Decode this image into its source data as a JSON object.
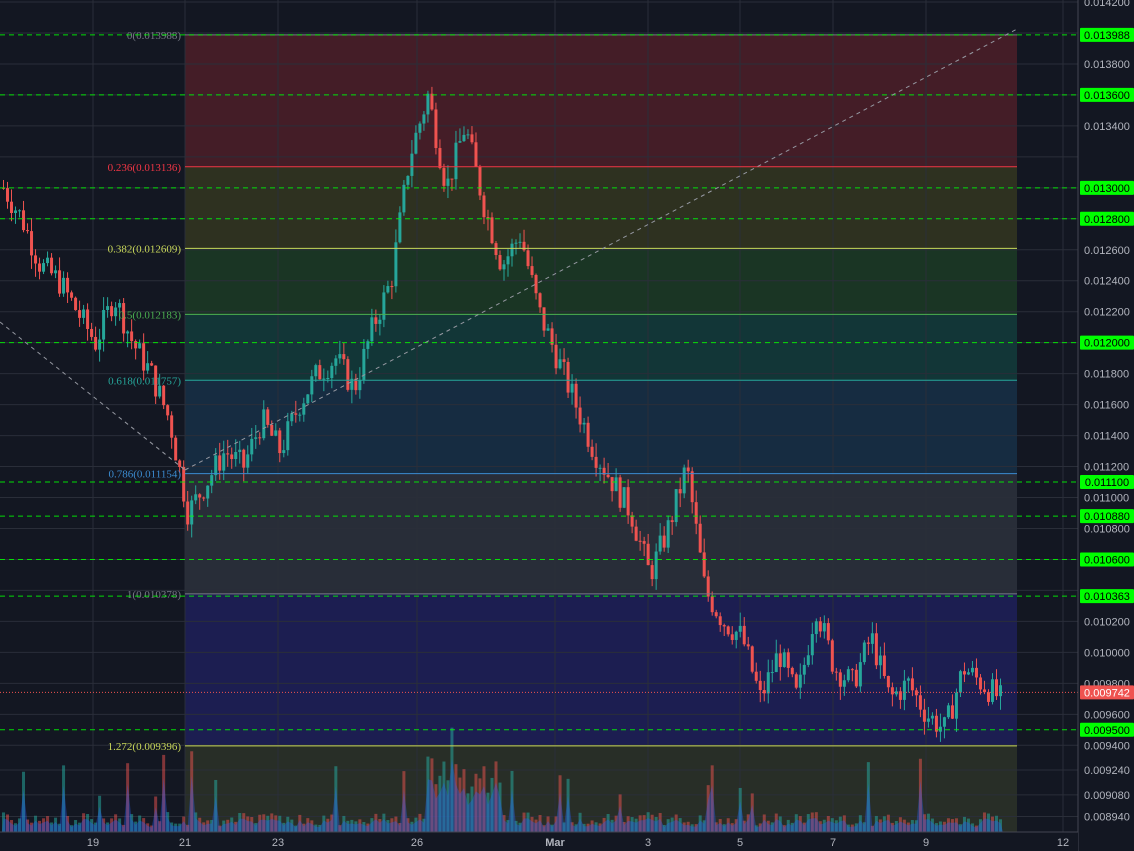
{
  "chart_data": {
    "type": "candlestick",
    "y_axis": {
      "ylim": [
        0.00884,
        0.0142
      ],
      "ticks": [
        "0.014200",
        "0.013800",
        "0.013400",
        "0.012600",
        "0.012400",
        "0.012200",
        "0.011800",
        "0.011600",
        "0.011400",
        "0.011200",
        "0.011000",
        "0.010800",
        "0.010200",
        "0.010000",
        "0.009800",
        "0.009600",
        "0.009400",
        "0.009240",
        "0.009080",
        "0.008940"
      ]
    },
    "x_axis": {
      "ticks": [
        {
          "label": "19",
          "bold": false
        },
        {
          "label": "21",
          "bold": false
        },
        {
          "label": "23",
          "bold": false
        },
        {
          "label": "26",
          "bold": false
        },
        {
          "label": "Mar",
          "bold": true
        },
        {
          "label": "3",
          "bold": false
        },
        {
          "label": "5",
          "bold": false
        },
        {
          "label": "7",
          "bold": false
        },
        {
          "label": "9",
          "bold": false
        },
        {
          "label": "12",
          "bold": false
        }
      ]
    },
    "fib_levels": [
      {
        "ratio": "0",
        "value": 0.013988,
        "label": "0(0.013988)",
        "color": "#787b86"
      },
      {
        "ratio": "0.236",
        "value": 0.013136,
        "label": "0.236(0.013136)",
        "color": "#f23645"
      },
      {
        "ratio": "0.382",
        "value": 0.012609,
        "label": "0.382(0.012609)",
        "color": "#c9d85a"
      },
      {
        "ratio": "0.5",
        "value": 0.012183,
        "label": "0.5(0.012183)",
        "color": "#4caf50"
      },
      {
        "ratio": "0.618",
        "value": 0.011757,
        "label": "0.618(0.011757)",
        "color": "#26a69a"
      },
      {
        "ratio": "0.786",
        "value": 0.011154,
        "label": "0.786(0.011154)",
        "color": "#3b8bd0"
      },
      {
        "ratio": "1",
        "value": 0.010378,
        "label": "1(0.010378)",
        "color": "#787b86"
      },
      {
        "ratio": "1.272",
        "value": 0.009396,
        "label": "1.272(0.009396)",
        "color": "#c9d85a"
      }
    ],
    "horizontal_levels": [
      {
        "value": 0.013988,
        "label": "0.013988"
      },
      {
        "value": 0.0136,
        "label": "0.013600"
      },
      {
        "value": 0.013,
        "label": "0.013000"
      },
      {
        "value": 0.0128,
        "label": "0.012800"
      },
      {
        "value": 0.012,
        "label": "0.012000"
      },
      {
        "value": 0.0111,
        "label": "0.011100"
      },
      {
        "value": 0.01088,
        "label": "0.010880"
      },
      {
        "value": 0.0106,
        "label": "0.010600"
      },
      {
        "value": 0.010363,
        "label": "0.010363"
      },
      {
        "value": 0.0095,
        "label": "0.009500"
      }
    ],
    "current_price": {
      "value": 0.009742,
      "label": "0.009742",
      "color": "#ef5350"
    },
    "colors": {
      "up": "#26a69a",
      "down": "#ef5350",
      "level_line": "#00ff00",
      "level_tag": "#00ff00"
    },
    "price_path": [
      0.013,
      0.0128,
      0.0125,
      0.0124,
      0.0122,
      0.012,
      0.0123,
      0.012,
      0.0118,
      0.0115,
      0.0109,
      0.0111,
      0.0113,
      0.0112,
      0.0115,
      0.0113,
      0.0116,
      0.0118,
      0.0119,
      0.0117,
      0.0121,
      0.0124,
      0.0132,
      0.0136,
      0.013,
      0.0134,
      0.0129,
      0.0125,
      0.0127,
      0.0122,
      0.0119,
      0.0116,
      0.0113,
      0.0111,
      0.0109,
      0.0105,
      0.0108,
      0.0112,
      0.0104,
      0.0102,
      0.0101,
      0.0097,
      0.01,
      0.0097,
      0.0103,
      0.0099,
      0.0098,
      0.0101,
      0.0097,
      0.0098,
      0.0096,
      0.0095,
      0.0099,
      0.0098,
      0.0097
    ]
  }
}
